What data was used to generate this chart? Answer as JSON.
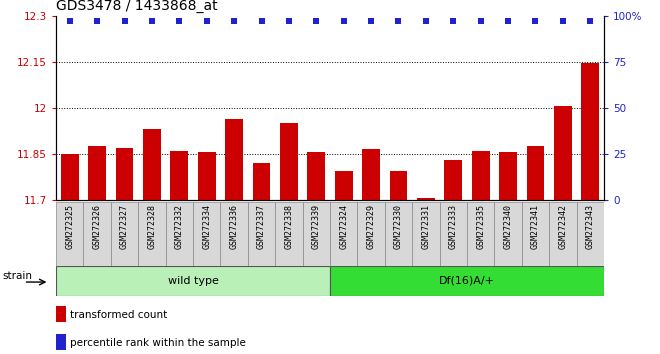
{
  "title": "GDS3478 / 1433868_at",
  "samples": [
    "GSM272325",
    "GSM272326",
    "GSM272327",
    "GSM272328",
    "GSM272332",
    "GSM272334",
    "GSM272336",
    "GSM272337",
    "GSM272338",
    "GSM272339",
    "GSM272324",
    "GSM272329",
    "GSM272330",
    "GSM272331",
    "GSM272333",
    "GSM272335",
    "GSM272340",
    "GSM272341",
    "GSM272342",
    "GSM272343"
  ],
  "bar_values": [
    11.85,
    11.875,
    11.87,
    11.93,
    11.86,
    11.855,
    11.965,
    11.82,
    11.95,
    11.855,
    11.795,
    11.865,
    11.795,
    11.705,
    11.83,
    11.86,
    11.855,
    11.875,
    12.005,
    12.145
  ],
  "bar_color": "#cc0000",
  "dot_color": "#2222cc",
  "ylim_left": [
    11.7,
    12.3
  ],
  "ylim_right": [
    0,
    100
  ],
  "yticks_left": [
    11.7,
    11.85,
    12.0,
    12.15,
    12.3
  ],
  "yticks_right": [
    0,
    25,
    50,
    75,
    100
  ],
  "ytick_labels_left": [
    "11.7",
    "11.85",
    "12",
    "12.15",
    "12.3"
  ],
  "ytick_labels_right": [
    "0",
    "25",
    "50",
    "75",
    "100%"
  ],
  "hlines": [
    11.85,
    12.0,
    12.15
  ],
  "group1_label": "wild type",
  "group2_label": "Df(16)A/+",
  "group1_count": 10,
  "group2_count": 10,
  "strain_label": "strain",
  "legend1": "transformed count",
  "legend2": "percentile rank within the sample",
  "bar_width": 0.65,
  "dot_size": 22,
  "cell_color": "#d8d8d8",
  "group1_color": "#b8f0b8",
  "group2_color": "#33dd33"
}
